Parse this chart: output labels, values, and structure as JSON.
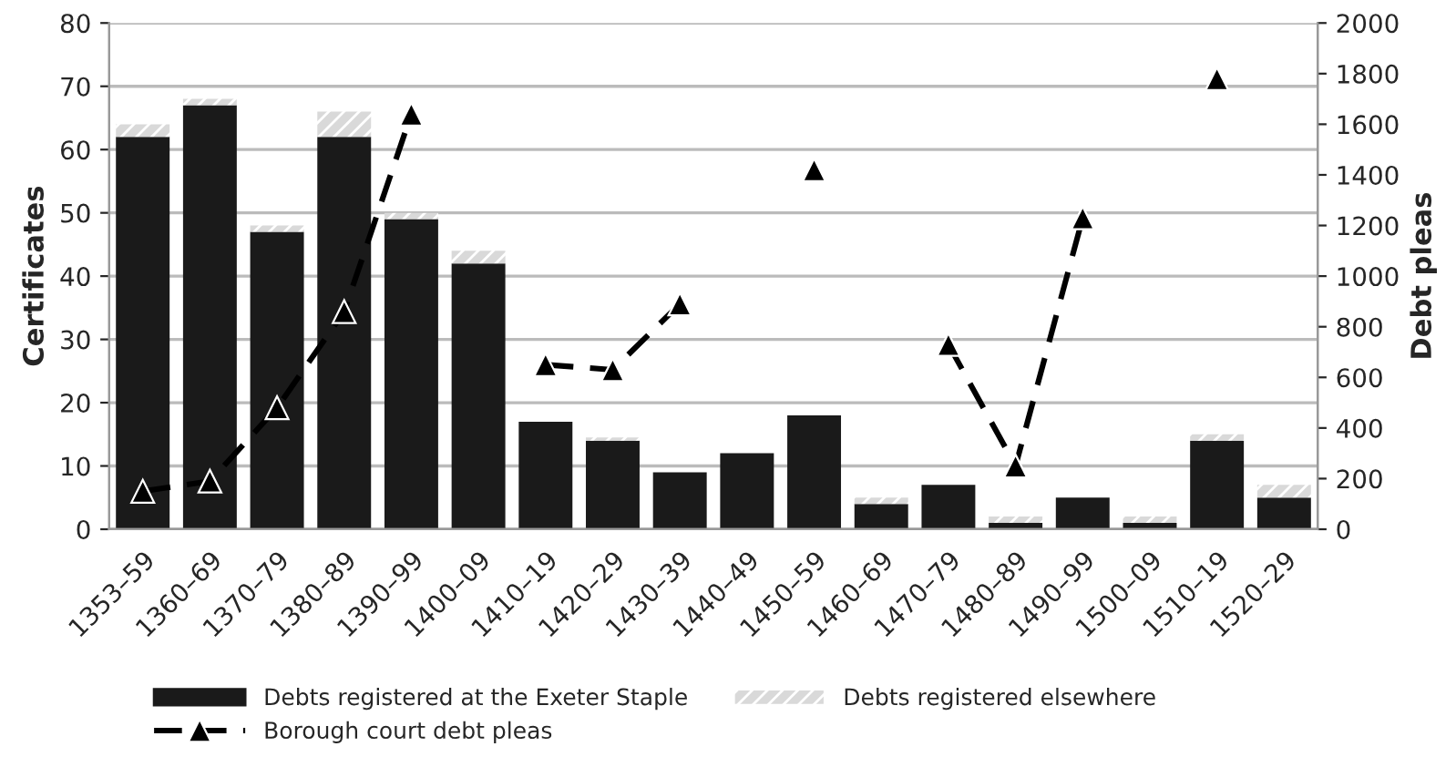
{
  "chart_data": {
    "type": "bar",
    "stacked": true,
    "categories": [
      "1353–59",
      "1360–69",
      "1370–79",
      "1380–89",
      "1390–99",
      "1400–09",
      "1410–19",
      "1420–29",
      "1430–39",
      "1440–49",
      "1450–59",
      "1460–69",
      "1470–79",
      "1480–89",
      "1490–99",
      "1500–09",
      "1510–19",
      "1520–29"
    ],
    "series": [
      {
        "name": "Debts registered at the Exeter Staple",
        "color": "#1a1a1a",
        "values": [
          62,
          67,
          47,
          62,
          49,
          42,
          17,
          14,
          9,
          12,
          18,
          4,
          7,
          1,
          5,
          1,
          14,
          5
        ]
      },
      {
        "name": "Debts registered elsewhere",
        "color": "#d9d9d9",
        "values": [
          2,
          1,
          1,
          4,
          1,
          2,
          0,
          0.5,
          0,
          0,
          0,
          1,
          0,
          1,
          0,
          1,
          1,
          2
        ]
      },
      {
        "name": "Borough court debt pleas",
        "type": "line",
        "axis": "y2",
        "color": "#000000",
        "marker": "triangle",
        "line_style": "dashed",
        "values": [
          150,
          190,
          480,
          860,
          1640,
          null,
          650,
          630,
          890,
          null,
          1420,
          null,
          730,
          250,
          1230,
          null,
          1780,
          null
        ]
      }
    ],
    "ylabel": "Certificates",
    "y2label": "Debt pleas",
    "ylim": [
      0,
      80
    ],
    "yticks": [
      0,
      10,
      20,
      30,
      40,
      50,
      60,
      70,
      80
    ],
    "y2lim": [
      0,
      2000
    ],
    "y2ticks": [
      0,
      200,
      400,
      600,
      800,
      1000,
      1200,
      1400,
      1600,
      1800,
      2000
    ],
    "grid": "y",
    "legend": "bottom"
  }
}
